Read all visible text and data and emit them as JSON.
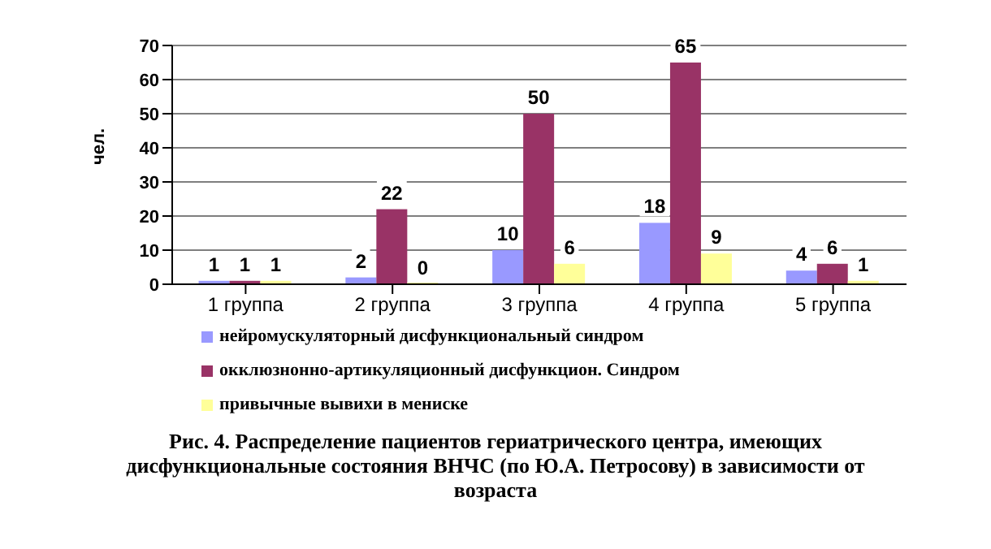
{
  "chart_data": {
    "type": "bar",
    "title": "Рис. 4. Распределение пациентов гериатрического центра, имеющих дисфункциональные состояния ВНЧС  (по Ю.А. Петросову) в зависимости от возраста",
    "ylabel": "чел.",
    "categories": [
      "1 группа",
      "2 группа",
      "3 группа",
      "4 группа",
      "5 группа"
    ],
    "series": [
      {
        "name": "нейромускуляторный  дисфункциональный  синдром",
        "color": "#9999ff",
        "values": [
          1,
          2,
          10,
          18,
          4
        ]
      },
      {
        "name": "окклюзнонно-артикуляционный  дисфункцион.  Синдром",
        "color": "#993366",
        "values": [
          1,
          22,
          50,
          65,
          6
        ]
      },
      {
        "name": "привычные  вывихи  в мениске",
        "color": "#ffff99",
        "values": [
          1,
          0,
          6,
          9,
          1
        ]
      }
    ],
    "ylim": [
      0,
      70
    ],
    "yticks": [
      0,
      10,
      20,
      30,
      40,
      50,
      60,
      70
    ],
    "grid": "y",
    "legend": "bottom",
    "data_labels": true
  }
}
